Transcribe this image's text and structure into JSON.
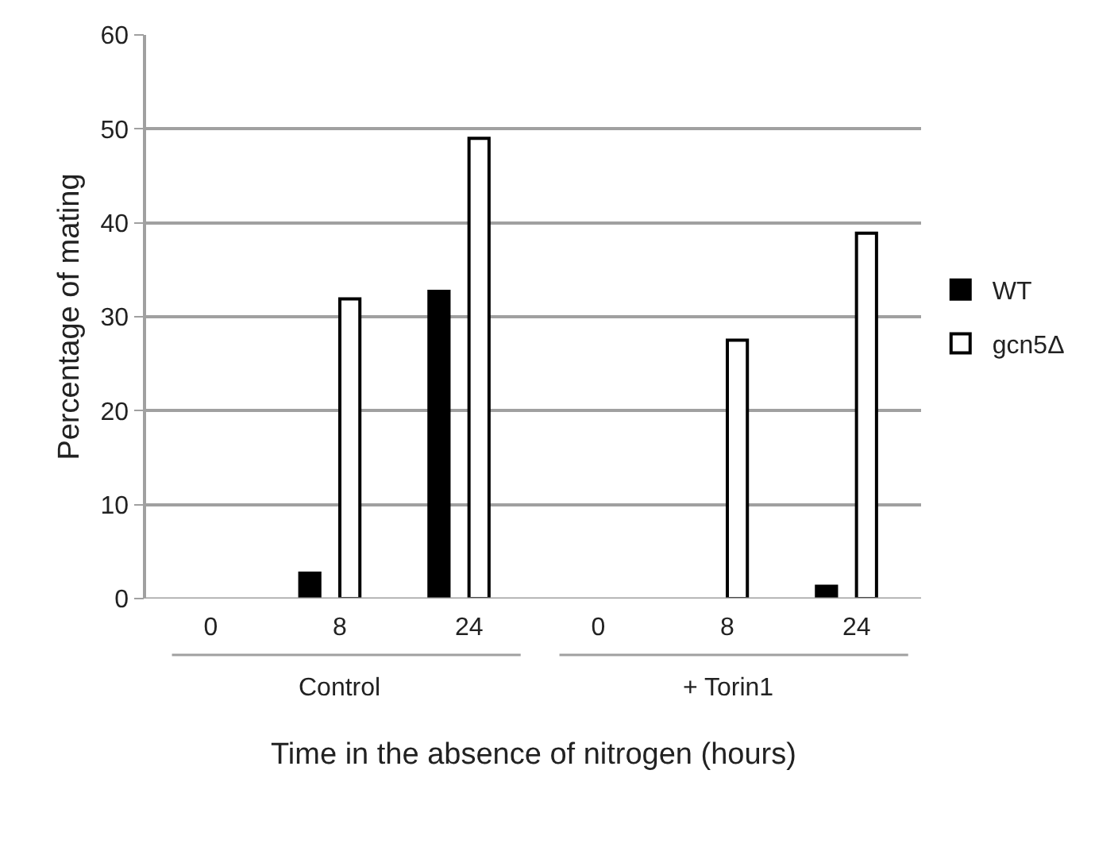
{
  "chart_data": {
    "type": "bar",
    "categories": [
      "0",
      "8",
      "24",
      "0",
      "8",
      "24"
    ],
    "series": [
      {
        "name": "WT",
        "color": "#000000",
        "values": [
          0,
          2.7,
          32.7,
          0,
          0,
          1.3
        ]
      },
      {
        "name": "gcn5Δ",
        "color": "#ffffff",
        "values": [
          0,
          31.9,
          49.0,
          0,
          27.5,
          38.9
        ]
      }
    ],
    "xlabel": "Time in the absence of nitrogen (hours)",
    "ylabel": "Percentage of mating",
    "annotations": [
      "Control",
      "+ Torin1"
    ],
    "ylim": [
      0,
      60
    ],
    "yticks": [
      0,
      10,
      20,
      30,
      40,
      50,
      60
    ],
    "grid": "y",
    "legend": "right"
  }
}
